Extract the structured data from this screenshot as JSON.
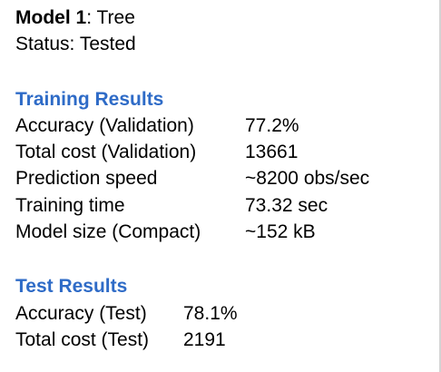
{
  "model": {
    "name_label": "Model 1",
    "name_sep": ":",
    "name_value": "Tree",
    "status_label": "Status:",
    "status_value": "Tested"
  },
  "training": {
    "heading": "Training Results",
    "heading_color": "#2e6bc7",
    "rows": [
      {
        "label": "Accuracy (Validation)",
        "value": "77.2%"
      },
      {
        "label": "Total cost (Validation)",
        "value": "13661"
      },
      {
        "label": "Prediction speed",
        "value": "~8200 obs/sec"
      },
      {
        "label": "Training time",
        "value": "73.32 sec"
      },
      {
        "label": "Model size (Compact)",
        "value": "~152 kB"
      }
    ]
  },
  "test": {
    "heading": "Test Results",
    "heading_color": "#2e6bc7",
    "rows": [
      {
        "label": "Accuracy (Test)",
        "value": "78.1%"
      },
      {
        "label": "Total cost (Test)",
        "value": "2191"
      }
    ]
  }
}
